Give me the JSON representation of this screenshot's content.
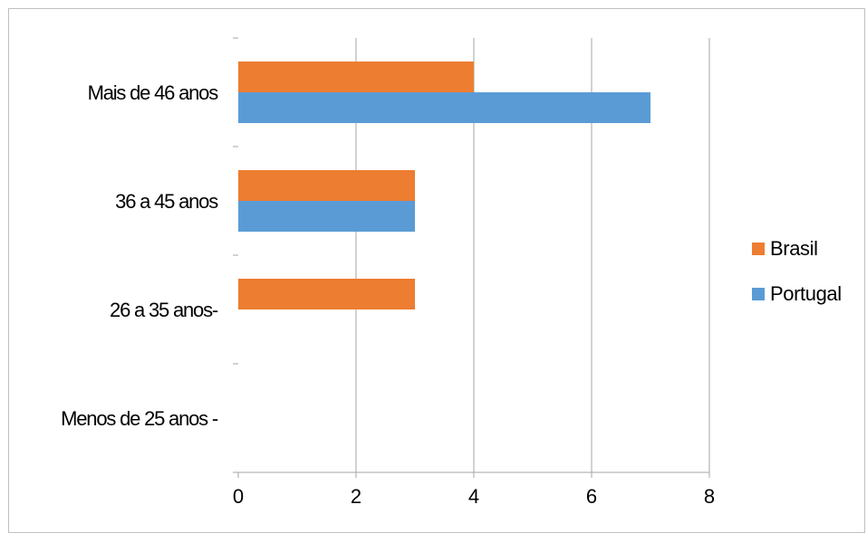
{
  "chart_data": {
    "type": "bar",
    "orientation": "horizontal",
    "categories": [
      "Mais de 46 anos",
      "36 a 45 anos",
      "26 a 35 anos-",
      "Menos de 25 anos -"
    ],
    "series": [
      {
        "name": "Brasil",
        "color": "#ED7D31",
        "values": [
          4,
          3,
          3,
          0
        ]
      },
      {
        "name": "Portugal",
        "color": "#5B9BD5",
        "values": [
          7,
          3,
          0,
          0
        ]
      }
    ],
    "xlim": [
      0,
      8
    ],
    "xticks": [
      "0",
      "2",
      "4",
      "6",
      "8"
    ],
    "grid": true,
    "legend_position": "right",
    "title": "",
    "xlabel": "",
    "ylabel": ""
  }
}
